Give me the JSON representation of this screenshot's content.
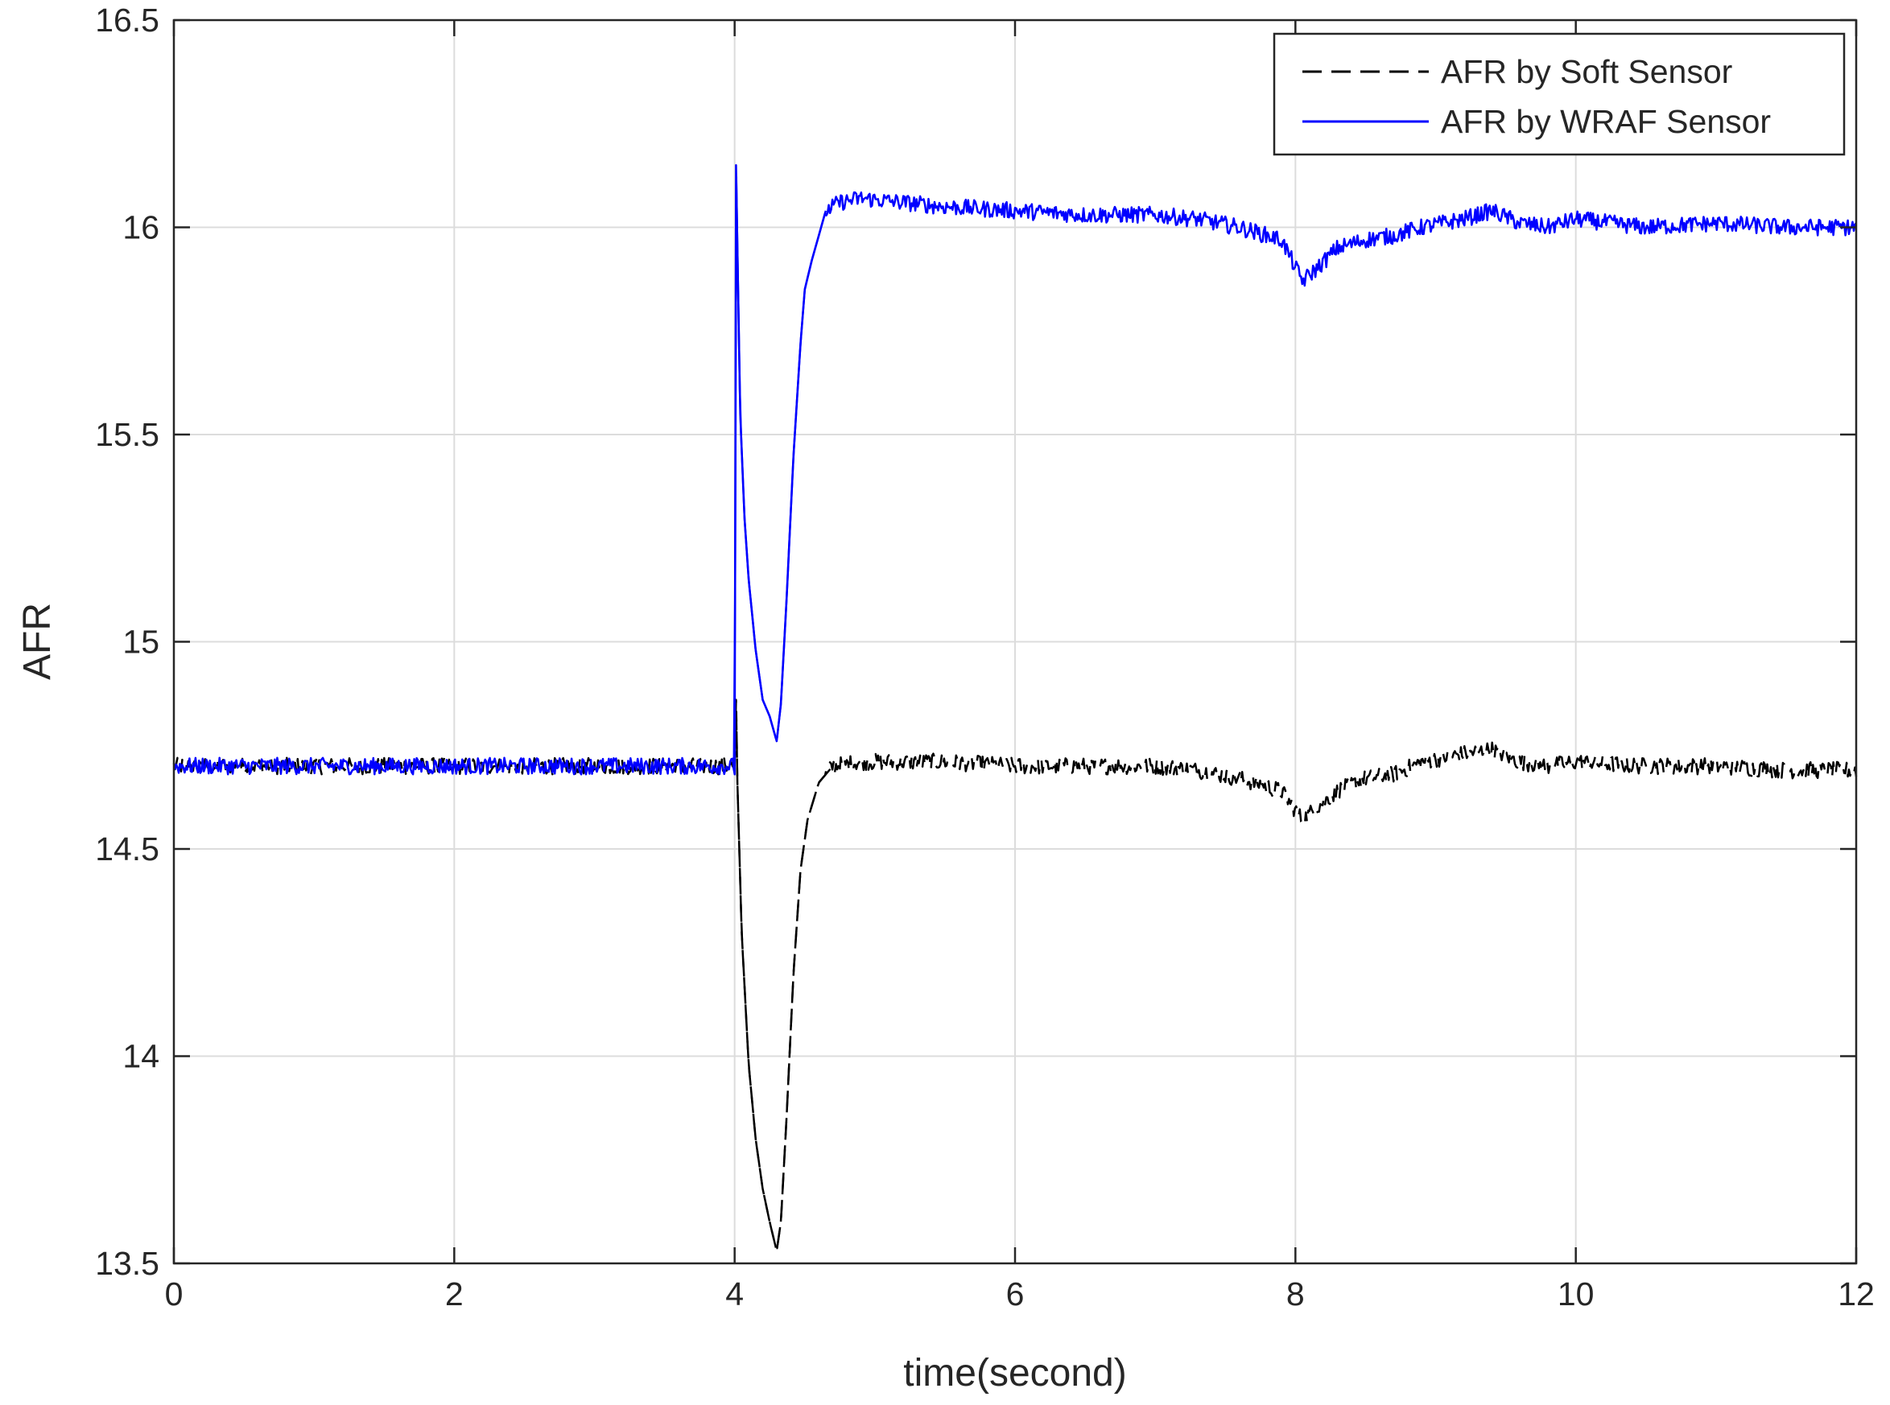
{
  "chart_data": {
    "type": "line",
    "title": "",
    "xlabel": "time(second)",
    "ylabel": "AFR",
    "xlim": [
      0,
      12
    ],
    "ylim": [
      13.5,
      16.5
    ],
    "xticks": [
      "0",
      "2",
      "4",
      "6",
      "8",
      "10",
      "12"
    ],
    "yticks": [
      "13.5",
      "14",
      "14.5",
      "15",
      "15.5",
      "16",
      "16.5"
    ],
    "grid": true,
    "legend": "top-right",
    "series": [
      {
        "name": "AFR by Soft Sensor",
        "color": "#000000",
        "style": "dashed",
        "noise": 0.02,
        "x": [
          0,
          3.98,
          4.0,
          4.01,
          4.02,
          4.05,
          4.1,
          4.15,
          4.2,
          4.25,
          4.3,
          4.33,
          4.37,
          4.42,
          4.47,
          4.52,
          4.6,
          4.7,
          4.9,
          5.5,
          6.0,
          6.5,
          7.0,
          7.3,
          7.6,
          7.9,
          8.05,
          8.15,
          8.3,
          8.5,
          8.7,
          8.9,
          9.2,
          9.4,
          9.6,
          9.8,
          10.0,
          10.5,
          11.0,
          11.5,
          12.0
        ],
        "y": [
          14.7,
          14.7,
          14.7,
          14.86,
          14.66,
          14.3,
          13.98,
          13.8,
          13.68,
          13.6,
          13.53,
          13.6,
          13.85,
          14.2,
          14.45,
          14.57,
          14.66,
          14.7,
          14.71,
          14.71,
          14.7,
          14.7,
          14.7,
          14.69,
          14.67,
          14.64,
          14.57,
          14.6,
          14.64,
          14.67,
          14.68,
          14.71,
          14.73,
          14.74,
          14.71,
          14.7,
          14.71,
          14.7,
          14.7,
          14.69,
          14.69
        ]
      },
      {
        "name": "AFR by WRAF Sensor",
        "color": "#0000ff",
        "style": "solid",
        "noise": 0.02,
        "x": [
          0,
          3.99,
          4.0,
          4.01,
          4.02,
          4.04,
          4.07,
          4.1,
          4.15,
          4.2,
          4.25,
          4.3,
          4.33,
          4.37,
          4.42,
          4.47,
          4.5,
          4.55,
          4.6,
          4.65,
          4.75,
          4.9,
          5.2,
          5.5,
          6.0,
          6.5,
          7.0,
          7.3,
          7.6,
          7.9,
          8.05,
          8.15,
          8.3,
          8.5,
          8.7,
          8.9,
          9.2,
          9.4,
          9.6,
          9.8,
          10.0,
          10.5,
          11.0,
          11.5,
          12.0
        ],
        "y": [
          14.7,
          14.7,
          14.68,
          16.15,
          15.95,
          15.55,
          15.3,
          15.15,
          14.98,
          14.86,
          14.82,
          14.76,
          14.85,
          15.1,
          15.45,
          15.72,
          15.85,
          15.92,
          15.98,
          16.04,
          16.06,
          16.07,
          16.06,
          16.05,
          16.04,
          16.03,
          16.03,
          16.02,
          16.0,
          15.97,
          15.87,
          15.9,
          15.95,
          15.97,
          15.98,
          16.0,
          16.02,
          16.04,
          16.01,
          16.0,
          16.02,
          16.0,
          16.01,
          16.0,
          16.0
        ]
      }
    ]
  }
}
